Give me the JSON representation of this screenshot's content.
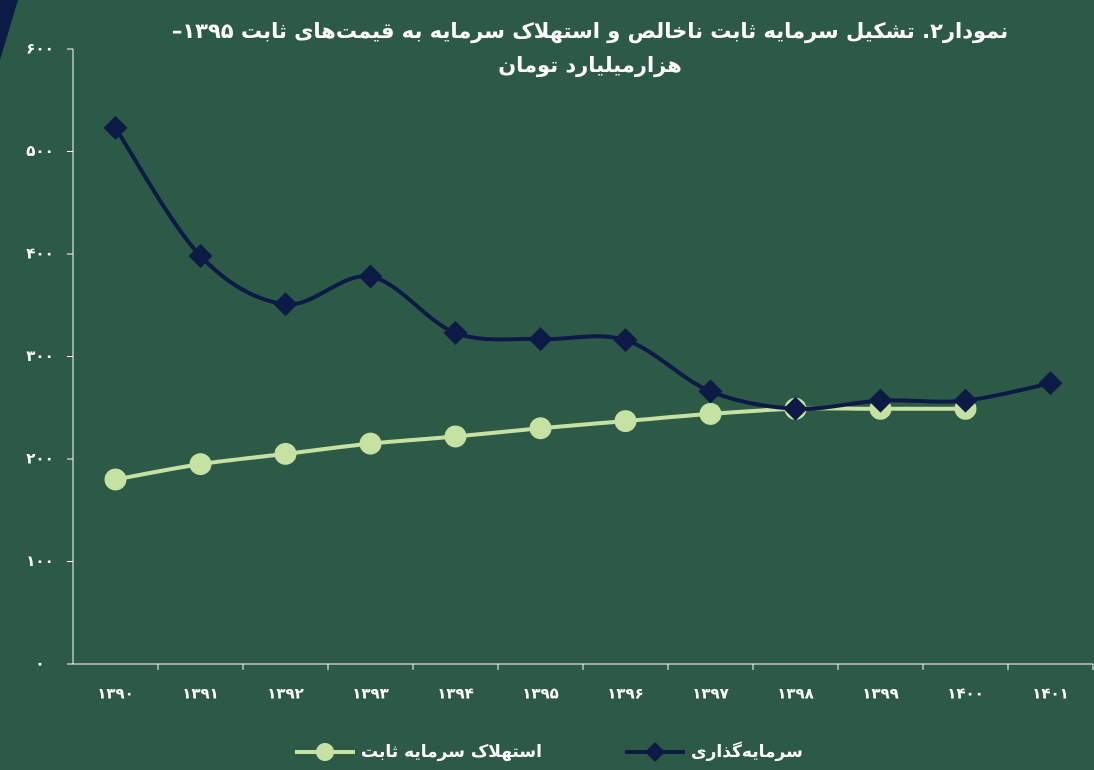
{
  "chart_data": {
    "type": "line",
    "title": "نمودار۲. تشکیل سرمایه ثابت ناخالص و استهلاک سرمایه به قیمت‌های ثابت ۱۳۹۵–",
    "subtitle": "هزارمیلیارد تومان",
    "categories": [
      "۱۳۹۰",
      "۱۳۹۱",
      "۱۳۹۲",
      "۱۳۹۳",
      "۱۳۹۴",
      "۱۳۹۵",
      "۱۳۹۶",
      "۱۳۹۷",
      "۱۳۹۸",
      "۱۳۹۹",
      "۱۴۰۰",
      "۱۴۰۱"
    ],
    "series": [
      {
        "name": "استهلاک سرمایه ثابت",
        "color": "#c6e2a2",
        "marker": "circle",
        "values": [
          180,
          195,
          205,
          215,
          222,
          230,
          237,
          244,
          249,
          249,
          249,
          null
        ]
      },
      {
        "name": "سرمایه‌گذاری",
        "color": "#0c1a45",
        "marker": "diamond",
        "values": [
          523,
          398,
          351,
          378,
          323,
          317,
          316,
          266,
          249,
          257,
          257,
          274
        ]
      }
    ],
    "ylim": [
      0,
      600
    ],
    "yticks": [
      {
        "value": 0,
        "label": "۰"
      },
      {
        "value": 100,
        "label": "۱۰۰"
      },
      {
        "value": 200,
        "label": "۲۰۰"
      },
      {
        "value": 300,
        "label": "۳۰۰"
      },
      {
        "value": 400,
        "label": "۴۰۰"
      },
      {
        "value": 500,
        "label": "۵۰۰"
      },
      {
        "value": 600,
        "label": "۶۰۰"
      }
    ],
    "grid": false,
    "legend": "bottom"
  }
}
